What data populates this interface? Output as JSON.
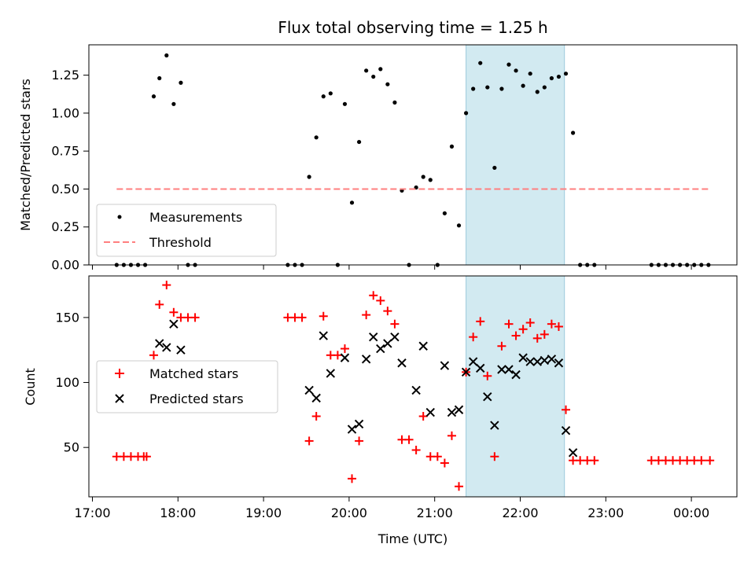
{
  "title": "Flux total observing time = 1.25 h",
  "xlabel": "Time (UTC)",
  "x_ticks": [
    "17:00",
    "18:00",
    "19:00",
    "20:00",
    "21:00",
    "22:00",
    "23:00",
    "00:00"
  ],
  "colors": {
    "measurement": "#000000",
    "threshold": "#ff7f7f",
    "matched": "#ff0000",
    "predicted": "#000000",
    "highlight": "#add8e6"
  },
  "chart_data": [
    {
      "type": "scatter",
      "ylabel": "Matched/Predicted stars",
      "ylim": [
        0,
        1.45
      ],
      "y_ticks": [
        "0.00",
        "0.25",
        "0.50",
        "0.75",
        "1.00",
        "1.25"
      ],
      "xlim": [
        "17:00",
        "00:30"
      ],
      "grid": false,
      "legend_position": "lower-left",
      "highlight_span": [
        "21:22",
        "22:31"
      ],
      "series": [
        {
          "name": "Measurements",
          "marker": "dot",
          "points": [
            [
              "17:17",
              0.0
            ],
            [
              "17:22",
              0.0
            ],
            [
              "17:27",
              0.0
            ],
            [
              "17:32",
              0.0
            ],
            [
              "17:37",
              0.0
            ],
            [
              "17:43",
              1.11
            ],
            [
              "17:47",
              1.23
            ],
            [
              "17:52",
              1.38
            ],
            [
              "17:57",
              1.06
            ],
            [
              "18:02",
              1.2
            ],
            [
              "18:07",
              0.0
            ],
            [
              "18:12",
              0.0
            ],
            [
              "19:17",
              0.0
            ],
            [
              "19:22",
              0.0
            ],
            [
              "19:27",
              0.0
            ],
            [
              "19:32",
              0.58
            ],
            [
              "19:37",
              0.84
            ],
            [
              "19:42",
              1.11
            ],
            [
              "19:47",
              1.13
            ],
            [
              "19:52",
              0.0
            ],
            [
              "19:57",
              1.06
            ],
            [
              "20:02",
              0.41
            ],
            [
              "20:07",
              0.81
            ],
            [
              "20:12",
              1.28
            ],
            [
              "20:17",
              1.24
            ],
            [
              "20:22",
              1.29
            ],
            [
              "20:27",
              1.19
            ],
            [
              "20:32",
              1.07
            ],
            [
              "20:37",
              0.49
            ],
            [
              "20:42",
              0.0
            ],
            [
              "20:47",
              0.51
            ],
            [
              "20:52",
              0.58
            ],
            [
              "20:57",
              0.56
            ],
            [
              "21:02",
              0.0
            ],
            [
              "21:07",
              0.34
            ],
            [
              "21:12",
              0.78
            ],
            [
              "21:17",
              0.26
            ],
            [
              "21:22",
              1.0
            ],
            [
              "21:27",
              1.16
            ],
            [
              "21:32",
              1.33
            ],
            [
              "21:37",
              1.17
            ],
            [
              "21:42",
              0.64
            ],
            [
              "21:47",
              1.16
            ],
            [
              "21:52",
              1.32
            ],
            [
              "21:57",
              1.28
            ],
            [
              "22:02",
              1.18
            ],
            [
              "22:07",
              1.26
            ],
            [
              "22:12",
              1.14
            ],
            [
              "22:17",
              1.17
            ],
            [
              "22:22",
              1.23
            ],
            [
              "22:27",
              1.24
            ],
            [
              "22:32",
              1.26
            ],
            [
              "22:37",
              0.87
            ],
            [
              "22:42",
              0.0
            ],
            [
              "22:47",
              0.0
            ],
            [
              "22:52",
              0.0
            ],
            [
              "23:32",
              0.0
            ],
            [
              "23:37",
              0.0
            ],
            [
              "23:42",
              0.0
            ],
            [
              "23:47",
              0.0
            ],
            [
              "23:52",
              0.0
            ],
            [
              "23:57",
              0.0
            ],
            [
              "00:02",
              0.0
            ],
            [
              "00:07",
              0.0
            ],
            [
              "00:12",
              0.0
            ]
          ]
        },
        {
          "name": "Threshold",
          "marker": "dashed-line",
          "points": [
            [
              "17:17",
              0.5
            ],
            [
              "00:13",
              0.5
            ]
          ]
        }
      ]
    },
    {
      "type": "scatter",
      "ylabel": "Count",
      "ylim": [
        12,
        182
      ],
      "y_ticks": [
        "50",
        "100",
        "150"
      ],
      "xlim": [
        "17:00",
        "00:30"
      ],
      "grid": false,
      "legend_position": "center-left",
      "highlight_span": [
        "21:22",
        "22:31"
      ],
      "series": [
        {
          "name": "Matched stars",
          "marker": "plus",
          "points": [
            [
              "17:17",
              43
            ],
            [
              "17:22",
              43
            ],
            [
              "17:27",
              43
            ],
            [
              "17:32",
              43
            ],
            [
              "17:36",
              43
            ],
            [
              "17:38",
              43
            ],
            [
              "17:43",
              121
            ],
            [
              "17:47",
              160
            ],
            [
              "17:52",
              175
            ],
            [
              "17:57",
              154
            ],
            [
              "18:02",
              150
            ],
            [
              "18:07",
              150
            ],
            [
              "18:12",
              150
            ],
            [
              "19:17",
              150
            ],
            [
              "19:22",
              150
            ],
            [
              "19:27",
              150
            ],
            [
              "19:32",
              55
            ],
            [
              "19:37",
              74
            ],
            [
              "19:42",
              151
            ],
            [
              "19:47",
              121
            ],
            [
              "19:52",
              121
            ],
            [
              "19:57",
              126
            ],
            [
              "20:02",
              26
            ],
            [
              "20:07",
              55
            ],
            [
              "20:12",
              152
            ],
            [
              "20:17",
              167
            ],
            [
              "20:22",
              163
            ],
            [
              "20:27",
              155
            ],
            [
              "20:32",
              145
            ],
            [
              "20:37",
              56
            ],
            [
              "20:42",
              56
            ],
            [
              "20:47",
              48
            ],
            [
              "20:52",
              74
            ],
            [
              "20:57",
              43
            ],
            [
              "21:02",
              43
            ],
            [
              "21:07",
              38
            ],
            [
              "21:12",
              59
            ],
            [
              "21:17",
              20
            ],
            [
              "21:22",
              108
            ],
            [
              "21:27",
              135
            ],
            [
              "21:32",
              147
            ],
            [
              "21:37",
              105
            ],
            [
              "21:42",
              43
            ],
            [
              "21:47",
              128
            ],
            [
              "21:52",
              145
            ],
            [
              "21:57",
              136
            ],
            [
              "22:02",
              141
            ],
            [
              "22:07",
              146
            ],
            [
              "22:12",
              134
            ],
            [
              "22:17",
              137
            ],
            [
              "22:22",
              145
            ],
            [
              "22:27",
              143
            ],
            [
              "22:32",
              79
            ],
            [
              "22:37",
              40
            ],
            [
              "22:42",
              40
            ],
            [
              "22:47",
              40
            ],
            [
              "22:52",
              40
            ],
            [
              "23:32",
              40
            ],
            [
              "23:37",
              40
            ],
            [
              "23:42",
              40
            ],
            [
              "23:47",
              40
            ],
            [
              "23:52",
              40
            ],
            [
              "23:57",
              40
            ],
            [
              "00:02",
              40
            ],
            [
              "00:07",
              40
            ],
            [
              "00:13",
              40
            ]
          ]
        },
        {
          "name": "Predicted stars",
          "marker": "x",
          "points": [
            [
              "17:47",
              130
            ],
            [
              "17:52",
              127
            ],
            [
              "17:57",
              145
            ],
            [
              "18:02",
              125
            ],
            [
              "19:32",
              94
            ],
            [
              "19:37",
              88
            ],
            [
              "19:42",
              136
            ],
            [
              "19:47",
              107
            ],
            [
              "19:57",
              119
            ],
            [
              "20:02",
              64
            ],
            [
              "20:07",
              68
            ],
            [
              "20:12",
              118
            ],
            [
              "20:17",
              135
            ],
            [
              "20:22",
              126
            ],
            [
              "20:27",
              130
            ],
            [
              "20:32",
              135
            ],
            [
              "20:37",
              115
            ],
            [
              "20:47",
              94
            ],
            [
              "20:52",
              128
            ],
            [
              "20:57",
              77
            ],
            [
              "21:07",
              113
            ],
            [
              "21:12",
              77
            ],
            [
              "21:17",
              79
            ],
            [
              "21:22",
              108
            ],
            [
              "21:27",
              116
            ],
            [
              "21:32",
              111
            ],
            [
              "21:37",
              89
            ],
            [
              "21:42",
              67
            ],
            [
              "21:47",
              110
            ],
            [
              "21:52",
              110
            ],
            [
              "21:57",
              106
            ],
            [
              "22:02",
              119
            ],
            [
              "22:07",
              116
            ],
            [
              "22:12",
              116
            ],
            [
              "22:17",
              117
            ],
            [
              "22:22",
              118
            ],
            [
              "22:27",
              115
            ],
            [
              "22:32",
              63
            ],
            [
              "22:37",
              46
            ]
          ]
        }
      ]
    }
  ]
}
